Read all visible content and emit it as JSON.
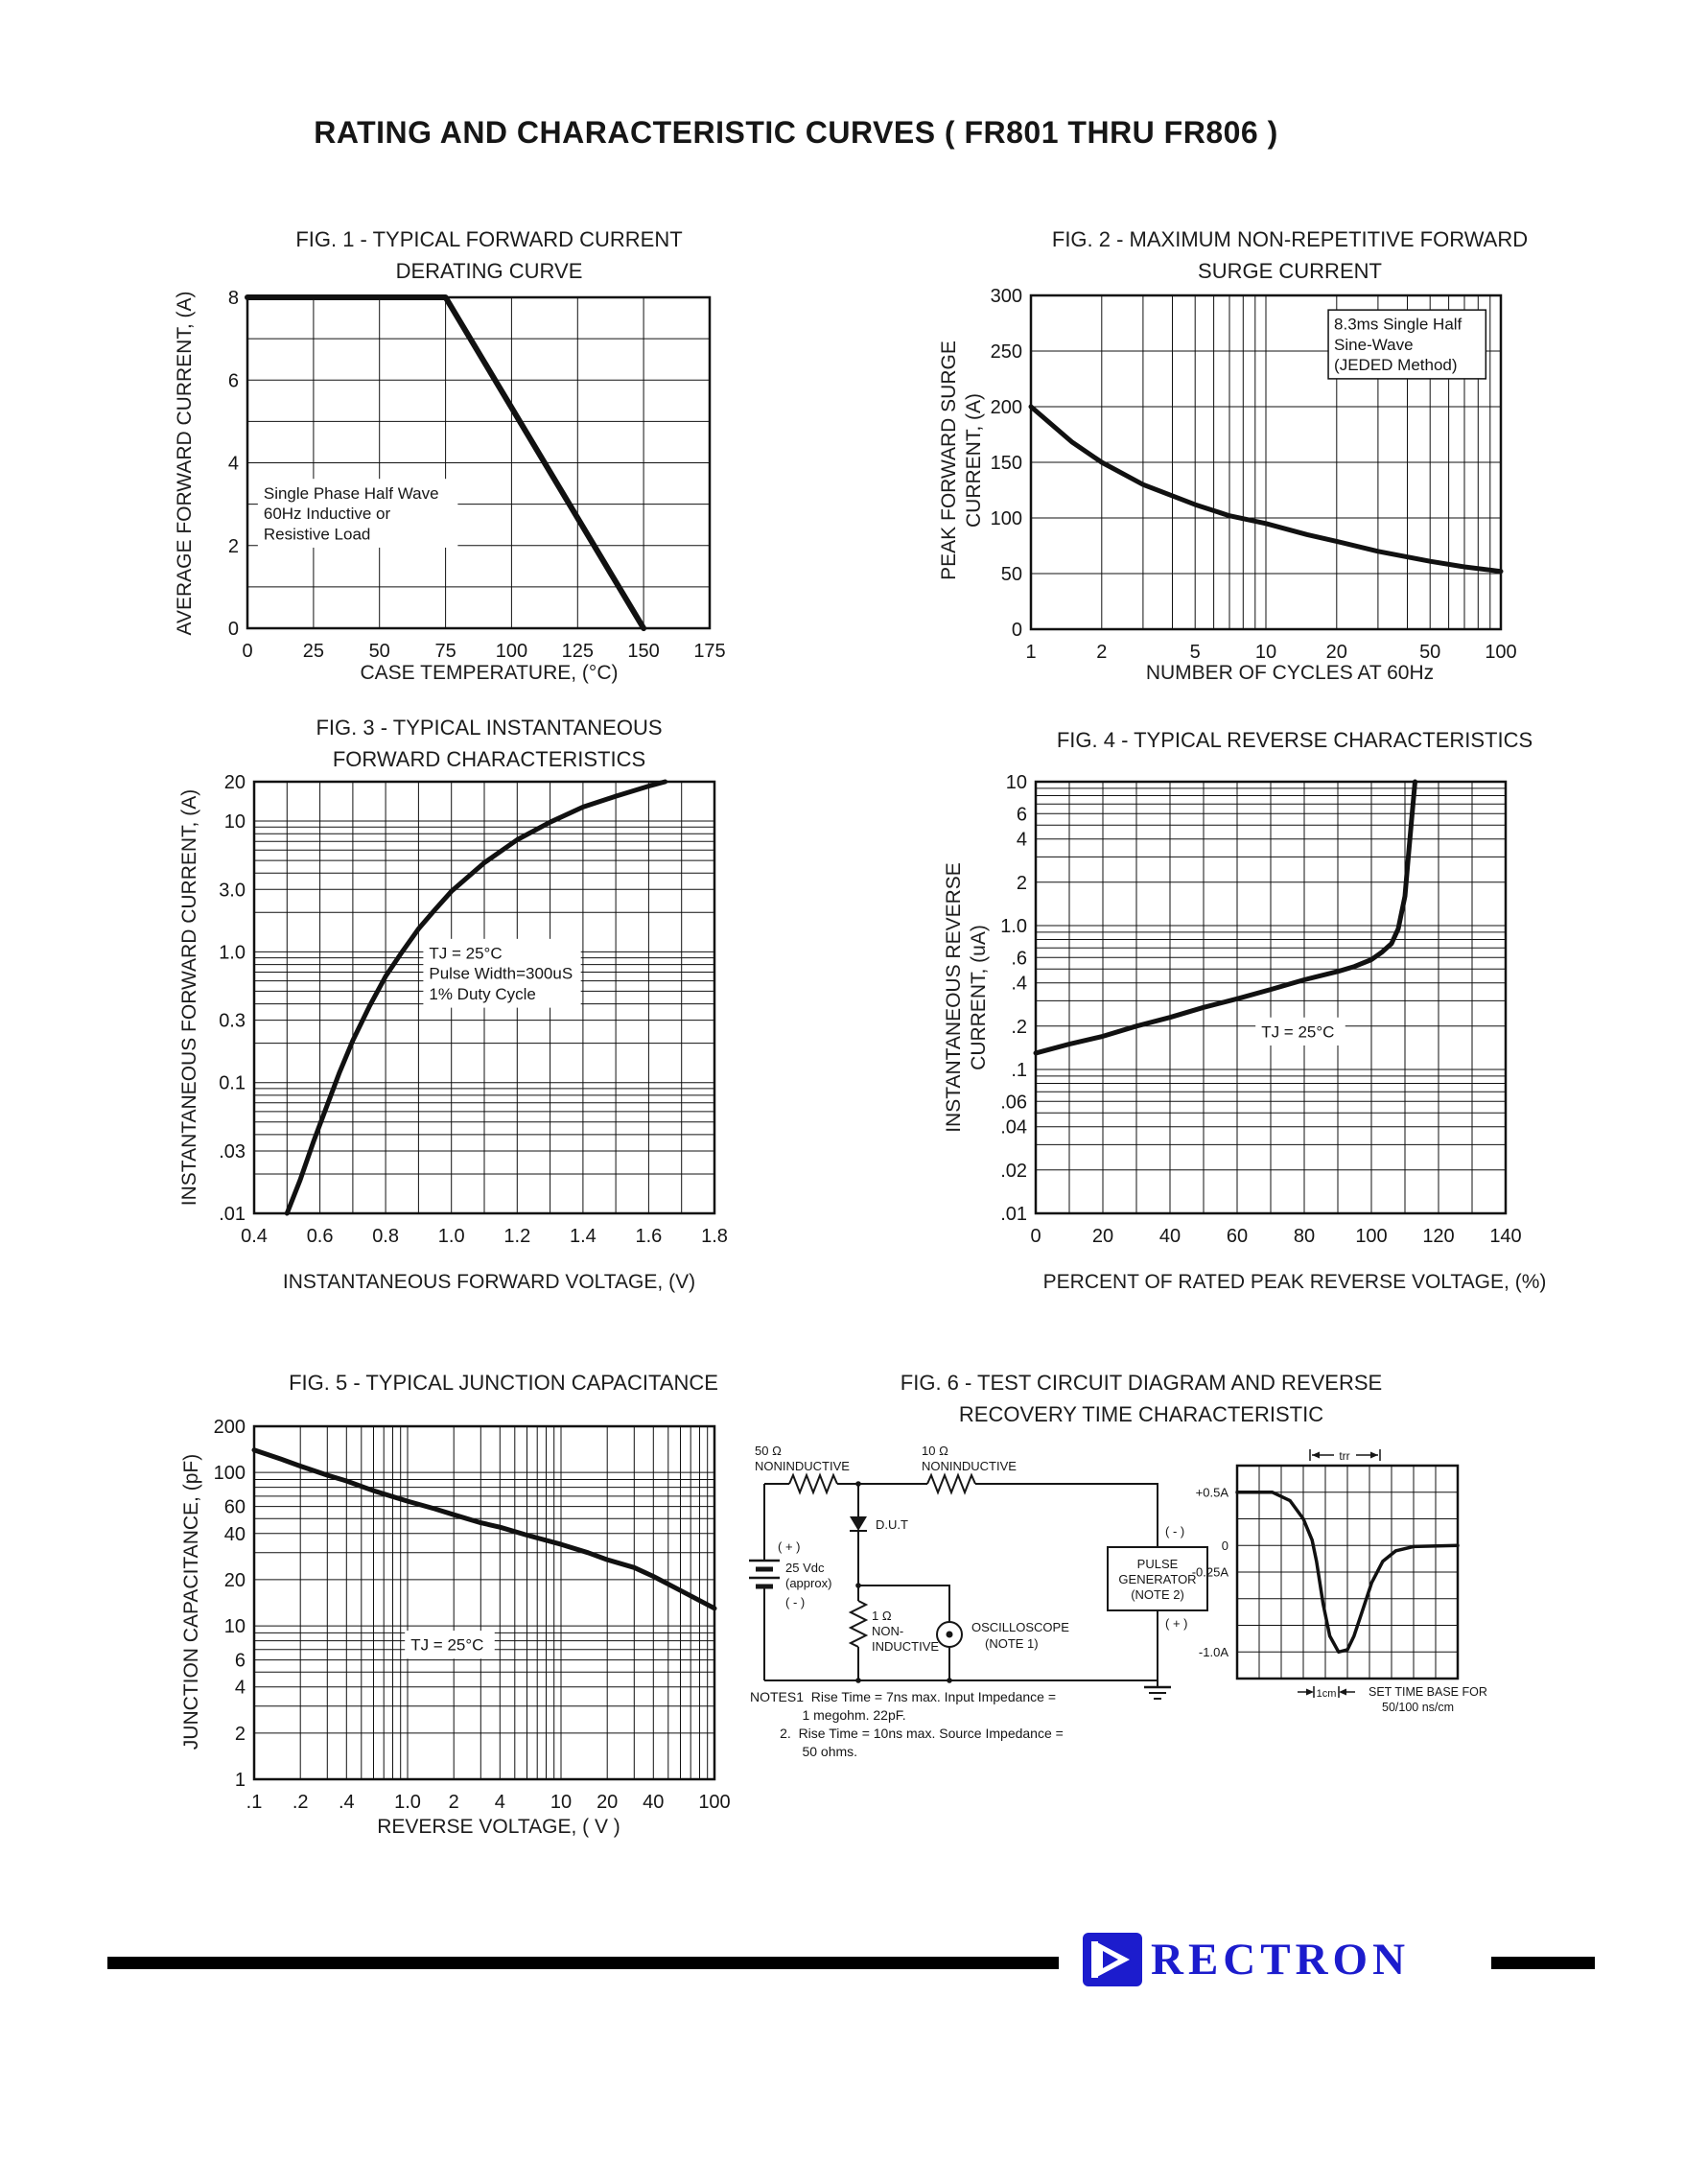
{
  "page": {
    "title": "RATING AND CHARACTERISTIC CURVES ( FR801 THRU FR806 )"
  },
  "footer": {
    "brand": "RECTRON"
  },
  "chart_data": [
    {
      "key": "fig1",
      "type": "line",
      "title": "FIG. 1 - TYPICAL FORWARD CURRENT\nDERATING CURVE",
      "xlabel": "CASE TEMPERATURE, (°C)",
      "ylabel": "AVERAGE FORWARD CURRENT, (A)",
      "x": {
        "scale": "linear",
        "min": 0,
        "max": 175,
        "grid": 25,
        "ticks": [
          {
            "v": 0,
            "label": "0"
          },
          {
            "v": 25,
            "label": "25"
          },
          {
            "v": 50,
            "label": "50"
          },
          {
            "v": 75,
            "label": "75"
          },
          {
            "v": 100,
            "label": "100"
          },
          {
            "v": 125,
            "label": "125"
          },
          {
            "v": 150,
            "label": "150"
          },
          {
            "v": 175,
            "label": "175"
          }
        ]
      },
      "y": {
        "scale": "linear",
        "min": 0,
        "max": 8,
        "grid": 1,
        "ticks": [
          {
            "v": 0,
            "label": "0"
          },
          {
            "v": 2,
            "label": "2"
          },
          {
            "v": 4,
            "label": "4"
          },
          {
            "v": 6,
            "label": "6"
          },
          {
            "v": 8,
            "label": "8"
          }
        ]
      },
      "series": [
        {
          "name": "forward-current-derating",
          "points": [
            [
              0,
              8
            ],
            [
              75,
              8
            ],
            [
              150,
              0
            ]
          ]
        }
      ],
      "annotations": [
        {
          "fx": 0.035,
          "fy": 0.56,
          "border": false,
          "font": 17,
          "lines": [
            "Single Phase Half Wave",
            "60Hz Inductive or",
            "Resistive Load"
          ]
        }
      ]
    },
    {
      "key": "fig2",
      "type": "line",
      "title": "FIG. 2 - MAXIMUM NON-REPETITIVE FORWARD\nSURGE CURRENT",
      "xlabel": "NUMBER OF CYCLES AT 60Hz",
      "ylabel": "PEAK FORWARD SURGE\nCURRENT, (A)",
      "x": {
        "scale": "log",
        "min": 1,
        "max": 100,
        "ticks": [
          {
            "v": 1,
            "label": "1"
          },
          {
            "v": 2,
            "label": "2"
          },
          {
            "v": 5,
            "label": "5"
          },
          {
            "v": 10,
            "label": "10"
          },
          {
            "v": 20,
            "label": "20"
          },
          {
            "v": 50,
            "label": "50"
          },
          {
            "v": 100,
            "label": "100"
          }
        ]
      },
      "y": {
        "scale": "linear",
        "min": 0,
        "max": 300,
        "grid": 50,
        "ticks": [
          {
            "v": 0,
            "label": "0"
          },
          {
            "v": 50,
            "label": "50"
          },
          {
            "v": 100,
            "label": "100"
          },
          {
            "v": 150,
            "label": "150"
          },
          {
            "v": 200,
            "label": "200"
          },
          {
            "v": 250,
            "label": "250"
          },
          {
            "v": 300,
            "label": "300"
          }
        ]
      },
      "series": [
        {
          "name": "surge-current",
          "points": [
            [
              1,
              200
            ],
            [
              1.5,
              168
            ],
            [
              2,
              150
            ],
            [
              3,
              130
            ],
            [
              5,
              112
            ],
            [
              7,
              102
            ],
            [
              10,
              95
            ],
            [
              15,
              85
            ],
            [
              20,
              79
            ],
            [
              30,
              70
            ],
            [
              50,
              61
            ],
            [
              70,
              56
            ],
            [
              100,
              52
            ]
          ]
        }
      ],
      "annotations": [
        {
          "fx": 0.645,
          "fy": 0.055,
          "border": true,
          "font": 17,
          "lines": [
            "8.3ms Single Half",
            "Sine-Wave",
            "(JEDED Method)"
          ]
        }
      ]
    },
    {
      "key": "fig3",
      "type": "line",
      "title": "FIG. 3 - TYPICAL INSTANTANEOUS\nFORWARD CHARACTERISTICS",
      "xlabel": "INSTANTANEOUS FORWARD VOLTAGE, (V)",
      "ylabel": "INSTANTANEOUS FORWARD CURRENT, (A)",
      "x": {
        "scale": "linear",
        "min": 0.4,
        "max": 1.8,
        "grid": 0.1,
        "ticks": [
          {
            "v": 0.4,
            "label": "0.4"
          },
          {
            "v": 0.6,
            "label": "0.6"
          },
          {
            "v": 0.8,
            "label": "0.8"
          },
          {
            "v": 1.0,
            "label": "1.0"
          },
          {
            "v": 1.2,
            "label": "1.2"
          },
          {
            "v": 1.4,
            "label": "1.4"
          },
          {
            "v": 1.6,
            "label": "1.6"
          },
          {
            "v": 1.8,
            "label": "1.8"
          }
        ]
      },
      "y": {
        "scale": "log",
        "min": 0.01,
        "max": 20,
        "ticks": [
          {
            "v": 20,
            "label": "20"
          },
          {
            "v": 10,
            "label": "10"
          },
          {
            "v": 3,
            "label": "3.0"
          },
          {
            "v": 1,
            "label": "1.0"
          },
          {
            "v": 0.3,
            "label": "0.3"
          },
          {
            "v": 0.1,
            "label": "0.1"
          },
          {
            "v": 0.03,
            "label": ".03"
          },
          {
            "v": 0.01,
            "label": ".01"
          }
        ]
      },
      "series": [
        {
          "name": "forward-characteristic",
          "points": [
            [
              0.5,
              0.01
            ],
            [
              0.54,
              0.018
            ],
            [
              0.58,
              0.035
            ],
            [
              0.62,
              0.065
            ],
            [
              0.66,
              0.12
            ],
            [
              0.7,
              0.21
            ],
            [
              0.75,
              0.38
            ],
            [
              0.8,
              0.65
            ],
            [
              0.85,
              1.0
            ],
            [
              0.9,
              1.5
            ],
            [
              0.95,
              2.1
            ],
            [
              1.0,
              2.9
            ],
            [
              1.1,
              4.8
            ],
            [
              1.2,
              7.2
            ],
            [
              1.3,
              9.8
            ],
            [
              1.4,
              12.8
            ],
            [
              1.5,
              15.5
            ],
            [
              1.6,
              18.5
            ],
            [
              1.65,
              20
            ]
          ]
        }
      ],
      "annotations": [
        {
          "fx": 0.38,
          "fy": 0.373,
          "border": false,
          "font": 17,
          "lines": [
            "TJ = 25°C",
            "Pulse Width=300uS",
            "1% Duty Cycle"
          ]
        }
      ]
    },
    {
      "key": "fig4",
      "type": "line",
      "title": "FIG. 4 - TYPICAL REVERSE CHARACTERISTICS",
      "xlabel": "PERCENT OF RATED PEAK REVERSE VOLTAGE, (%)",
      "ylabel": "INSTANTANEOUS REVERSE\nCURRENT, (uA)",
      "x": {
        "scale": "linear",
        "min": 0,
        "max": 140,
        "grid": 10,
        "ticks": [
          {
            "v": 0,
            "label": "0"
          },
          {
            "v": 20,
            "label": "20"
          },
          {
            "v": 40,
            "label": "40"
          },
          {
            "v": 60,
            "label": "60"
          },
          {
            "v": 80,
            "label": "80"
          },
          {
            "v": 100,
            "label": "100"
          },
          {
            "v": 120,
            "label": "120"
          },
          {
            "v": 140,
            "label": "140"
          }
        ]
      },
      "y": {
        "scale": "log",
        "min": 0.01,
        "max": 10,
        "ticks": [
          {
            "v": 10,
            "label": "10"
          },
          {
            "v": 6,
            "label": "6"
          },
          {
            "v": 4,
            "label": "4"
          },
          {
            "v": 2,
            "label": "2"
          },
          {
            "v": 1,
            "label": "1.0"
          },
          {
            "v": 0.6,
            "label": ".6"
          },
          {
            "v": 0.4,
            "label": ".4"
          },
          {
            "v": 0.2,
            "label": ".2"
          },
          {
            "v": 0.1,
            "label": ".1"
          },
          {
            "v": 0.06,
            "label": ".06"
          },
          {
            "v": 0.04,
            "label": ".04"
          },
          {
            "v": 0.02,
            "label": ".02"
          },
          {
            "v": 0.01,
            "label": ".01"
          }
        ]
      },
      "series": [
        {
          "name": "reverse-characteristic",
          "points": [
            [
              0,
              0.13
            ],
            [
              10,
              0.15
            ],
            [
              20,
              0.17
            ],
            [
              30,
              0.2
            ],
            [
              40,
              0.23
            ],
            [
              50,
              0.27
            ],
            [
              60,
              0.31
            ],
            [
              70,
              0.36
            ],
            [
              80,
              0.42
            ],
            [
              90,
              0.48
            ],
            [
              95,
              0.52
            ],
            [
              100,
              0.58
            ],
            [
              103,
              0.65
            ],
            [
              106,
              0.75
            ],
            [
              108,
              0.95
            ],
            [
              110,
              1.6
            ],
            [
              111,
              3.0
            ],
            [
              112,
              5.5
            ],
            [
              113,
              10
            ]
          ]
        }
      ],
      "annotations": [
        {
          "fx": 0.48,
          "fy": 0.555,
          "border": false,
          "font": 17,
          "lines": [
            "TJ = 25°C"
          ]
        }
      ]
    },
    {
      "key": "fig5",
      "type": "line",
      "title": "FIG. 5 - TYPICAL JUNCTION CAPACITANCE",
      "xlabel": "REVERSE VOLTAGE, ( V )",
      "ylabel": "JUNCTION CAPACITANCE, (pF)",
      "x": {
        "scale": "log",
        "min": 0.1,
        "max": 100,
        "ticks": [
          {
            "v": 0.1,
            "label": ".1"
          },
          {
            "v": 0.2,
            "label": ".2"
          },
          {
            "v": 0.4,
            "label": ".4"
          },
          {
            "v": 1,
            "label": "1.0"
          },
          {
            "v": 2,
            "label": "2"
          },
          {
            "v": 4,
            "label": "4"
          },
          {
            "v": 10,
            "label": "10"
          },
          {
            "v": 20,
            "label": "20"
          },
          {
            "v": 40,
            "label": "40"
          },
          {
            "v": 100,
            "label": "100"
          }
        ]
      },
      "y": {
        "scale": "log",
        "min": 1,
        "max": 200,
        "ticks": [
          {
            "v": 200,
            "label": "200"
          },
          {
            "v": 100,
            "label": "100"
          },
          {
            "v": 60,
            "label": "60"
          },
          {
            "v": 40,
            "label": "40"
          },
          {
            "v": 20,
            "label": "20"
          },
          {
            "v": 10,
            "label": "10"
          },
          {
            "v": 6,
            "label": "6"
          },
          {
            "v": 4,
            "label": "4"
          },
          {
            "v": 2,
            "label": "2"
          },
          {
            "v": 1,
            "label": "1"
          }
        ]
      },
      "series": [
        {
          "name": "junction-capacitance",
          "points": [
            [
              0.1,
              140
            ],
            [
              0.15,
              122
            ],
            [
              0.2,
              110
            ],
            [
              0.3,
              96
            ],
            [
              0.4,
              88
            ],
            [
              0.6,
              76
            ],
            [
              1,
              65
            ],
            [
              1.5,
              58
            ],
            [
              2,
              53
            ],
            [
              3,
              47
            ],
            [
              4,
              44
            ],
            [
              6,
              39
            ],
            [
              10,
              34
            ],
            [
              15,
              30
            ],
            [
              20,
              27
            ],
            [
              30,
              24
            ],
            [
              40,
              21
            ],
            [
              60,
              17
            ],
            [
              100,
              13
            ]
          ]
        }
      ],
      "annotations": [
        {
          "fx": 0.34,
          "fy": 0.59,
          "border": false,
          "font": 17,
          "lines": [
            "TJ = 25°C"
          ]
        }
      ]
    },
    {
      "key": "fig6_scope",
      "type": "line",
      "x": {
        "scale": "linear",
        "min": 0,
        "max": 10,
        "grid": 1,
        "ticks": []
      },
      "y": {
        "scale": "linear",
        "min": -1.25,
        "max": 0.75,
        "grid": 0.25,
        "ticks": [
          {
            "v": 0.5,
            "label": "+0.5A"
          },
          {
            "v": 0,
            "label": "0"
          },
          {
            "v": -0.25,
            "label": "-0.25A"
          },
          {
            "v": -1.0,
            "label": "-1.0A"
          }
        ]
      },
      "series": [
        {
          "name": "reverse-recovery-waveform",
          "points": [
            [
              0,
              0.5
            ],
            [
              1.6,
              0.5
            ],
            [
              2.4,
              0.42
            ],
            [
              3.0,
              0.25
            ],
            [
              3.4,
              0.05
            ],
            [
              3.6,
              -0.15
            ],
            [
              3.9,
              -0.55
            ],
            [
              4.2,
              -0.85
            ],
            [
              4.6,
              -1.0
            ],
            [
              5.0,
              -0.98
            ],
            [
              5.3,
              -0.85
            ],
            [
              5.7,
              -0.6
            ],
            [
              6.1,
              -0.35
            ],
            [
              6.6,
              -0.15
            ],
            [
              7.2,
              -0.05
            ],
            [
              8.0,
              -0.01
            ],
            [
              10,
              0
            ]
          ]
        }
      ],
      "annotations": []
    }
  ],
  "fig6": {
    "title": "FIG. 6 - TEST CIRCUIT DIAGRAM  AND REVERSE\nRECOVERY TIME CHARACTERISTIC",
    "circuit": {
      "r1_line1": "50 Ω",
      "r1_line2": "NONINDUCTIVE",
      "r2_line1": "10 Ω",
      "r2_line2": "NONINDUCTIVE",
      "dut_label": "D.U.T",
      "supply_plus": "( + )",
      "supply_v": "25 Vdc",
      "supply_approx": "(approx)",
      "supply_minus": "( - )",
      "r3_line1": "1 Ω",
      "r3_line2": "NON-",
      "r3_line3": "INDUCTIVE",
      "scope_line1": "OSCILLOSCOPE",
      "scope_line2": "(NOTE 1)",
      "pg_line1": "PULSE",
      "pg_line2": "GENERATOR",
      "pg_line3": "(NOTE 2)",
      "pg_minus": "( - )",
      "pg_plus": "( + )"
    },
    "scope": {
      "trr_label": "trr",
      "cm_label": "1cm",
      "timebase_line1": "SET TIME BASE FOR",
      "timebase_line2": "50/100 ns/cm"
    },
    "notes": "NOTES1  Rise Time = 7ns max. Input Impedance =\n              1 megohm. 22pF.\n        2.  Rise Time = 10ns max. Source Impedance =\n              50 ohms."
  }
}
